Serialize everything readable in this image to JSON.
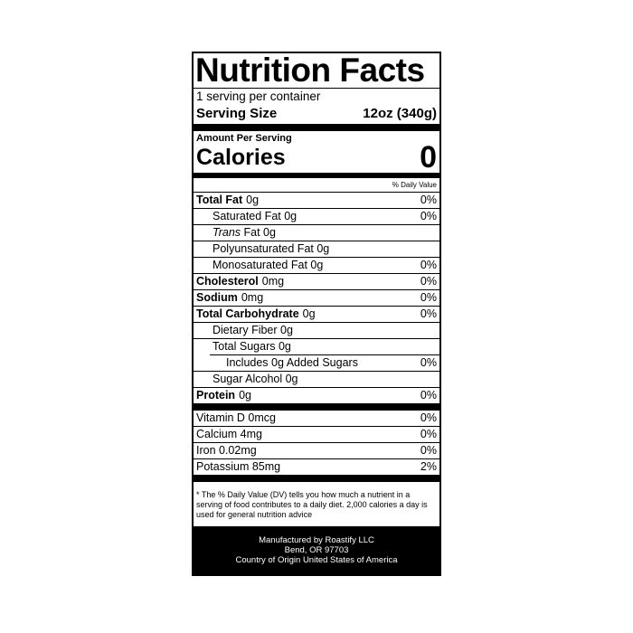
{
  "title": "Nutrition Facts",
  "servings": "1 serving per container",
  "serving_size": {
    "label": "Serving Size",
    "value": "12oz (340g)"
  },
  "amount_per_serving": "Amount Per Serving",
  "calories": {
    "label": "Calories",
    "value": "0"
  },
  "daily_value_header": "% Daily Value",
  "nutrients": [
    {
      "name": "Total Fat",
      "amount": "0g",
      "dv": "0%",
      "bold": true,
      "indent": 0
    },
    {
      "name": "Saturated Fat 0g",
      "amount": "",
      "dv": "0%",
      "indent": 1
    },
    {
      "name": "Trans",
      "amount": " Fat 0g",
      "dv": "",
      "indent": 1,
      "italic": true
    },
    {
      "name": "Polyunsaturated Fat 0g",
      "amount": "",
      "dv": "",
      "indent": 1
    },
    {
      "name": "Monosaturated Fat 0g",
      "amount": "",
      "dv": "0%",
      "indent": 1
    },
    {
      "name": "Cholesterol",
      "amount": "0mg",
      "dv": "0%",
      "bold": true
    },
    {
      "name": "Sodium",
      "amount": "0mg",
      "dv": "0%",
      "bold": true
    },
    {
      "name": "Total Carbohydrate",
      "amount": "0g",
      "dv": "0%",
      "bold": true
    },
    {
      "name": "Dietary Fiber 0g",
      "amount": "",
      "dv": "",
      "indent": 1
    },
    {
      "name": "Total Sugars 0g",
      "amount": "",
      "dv": "",
      "indent": 1
    },
    {
      "name": "Includes 0g Added Sugars",
      "amount": "",
      "dv": "0%",
      "indent": 2
    },
    {
      "name": "Sugar Alcohol 0g",
      "amount": "",
      "dv": "",
      "indent": 1
    },
    {
      "name": "Protein",
      "amount": "0g",
      "dv": "0%",
      "bold": true
    }
  ],
  "vitamins": [
    {
      "name": "Vitamin D 0mcg",
      "dv": "0%"
    },
    {
      "name": "Calcium 4mg",
      "dv": "0%"
    },
    {
      "name": "Iron 0.02mg",
      "dv": "0%"
    },
    {
      "name": "Potassium 85mg",
      "dv": "2%"
    }
  ],
  "footnote": "* The % Daily Value (DV) tells you how much a nutrient in a serving of food contributes to a daily diet. 2,000 calories a day is used for general nutrition advice",
  "manufacturer": [
    "Manufactured by Roastify LLC",
    "Bend, OR 97703",
    "Country of Origin United States of America"
  ]
}
